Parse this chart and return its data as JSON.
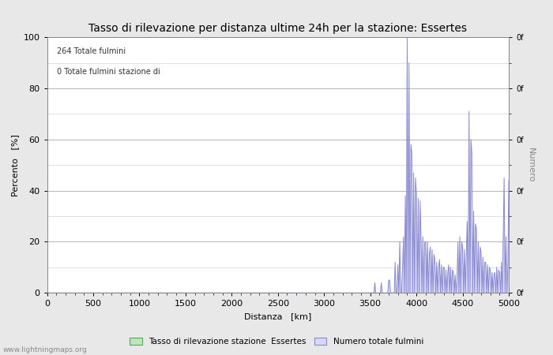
{
  "title": "Tasso di rilevazione per distanza ultime 24h per la stazione: Essertes",
  "xlabel": "Distanza   [km]",
  "ylabel_left": "Percento   [%]",
  "ylabel_right": "Numero",
  "annotation_line1": "264 Totale fulmini",
  "annotation_line2": "0 Totale fulmini stazione di",
  "xlim": [
    0,
    5000
  ],
  "ylim_left": [
    0,
    100
  ],
  "xticks": [
    0,
    500,
    1000,
    1500,
    2000,
    2500,
    3000,
    3500,
    4000,
    4500,
    5000
  ],
  "yticks_left": [
    0,
    20,
    40,
    60,
    80,
    100
  ],
  "bg_color": "#e8e8e8",
  "plot_bg_color": "#ffffff",
  "bar_fill_color": "#d8d8ff",
  "bar_line_color": "#8888cc",
  "green_bar_color": "#b8e8b8",
  "green_line_color": "#60a060",
  "watermark": "www.lightningmaps.org",
  "legend_label_green": "Tasso di rilevazione stazione  Essertes",
  "legend_label_blue": "Numero totale fulmini",
  "title_fontsize": 10,
  "axis_fontsize": 8,
  "tick_fontsize": 8,
  "signal_x": [
    3350,
    3360,
    3370,
    3380,
    3390,
    3400,
    3410,
    3420,
    3430,
    3440,
    3450,
    3460,
    3470,
    3480,
    3490,
    3500,
    3510,
    3520,
    3530,
    3540,
    3550,
    3560,
    3570,
    3580,
    3590,
    3600,
    3610,
    3620,
    3630,
    3640,
    3650,
    3660,
    3670,
    3680,
    3690,
    3700,
    3710,
    3720,
    3730,
    3740,
    3750,
    3760,
    3770,
    3780,
    3790,
    3800,
    3810,
    3820,
    3830,
    3840,
    3850,
    3860,
    3870,
    3880,
    3890,
    3900,
    3910,
    3920,
    3930,
    3940,
    3950,
    3960,
    3970,
    3980,
    3990,
    4000,
    4010,
    4020,
    4030,
    4040,
    4050,
    4060,
    4070,
    4080,
    4090,
    4100,
    4110,
    4120,
    4130,
    4140,
    4150,
    4160,
    4170,
    4180,
    4190,
    4200,
    4210,
    4220,
    4230,
    4240,
    4250,
    4260,
    4270,
    4280,
    4290,
    4300,
    4310,
    4320,
    4330,
    4340,
    4350,
    4360,
    4370,
    4380,
    4390,
    4400,
    4410,
    4420,
    4430,
    4440,
    4450,
    4460,
    4470,
    4480,
    4490,
    4500,
    4510,
    4520,
    4530,
    4540,
    4550,
    4560,
    4570,
    4580,
    4590,
    4600,
    4610,
    4620,
    4630,
    4640,
    4650,
    4660,
    4670,
    4680,
    4690,
    4700,
    4710,
    4720,
    4730,
    4740,
    4750,
    4760,
    4770,
    4780,
    4790,
    4800,
    4810,
    4820,
    4830,
    4840,
    4850,
    4860,
    4870,
    4880,
    4890,
    4900,
    4910,
    4920,
    4930,
    4940,
    4950,
    4960,
    4970,
    4980,
    4990,
    5000
  ],
  "signal_y": [
    0,
    0,
    0,
    0,
    0,
    0,
    0,
    0,
    0,
    0,
    0,
    0,
    0,
    0,
    0,
    0,
    0,
    0,
    0,
    0,
    4,
    0,
    0,
    0,
    0,
    0,
    0,
    4,
    0,
    0,
    0,
    0,
    0,
    0,
    0,
    5,
    5,
    0,
    0,
    0,
    0,
    0,
    12,
    0,
    0,
    11,
    0,
    20,
    0,
    0,
    10,
    22,
    0,
    38,
    0,
    100,
    0,
    90,
    0,
    58,
    55,
    0,
    47,
    0,
    45,
    39,
    0,
    37,
    0,
    36,
    22,
    0,
    22,
    0,
    20,
    20,
    0,
    20,
    0,
    15,
    18,
    0,
    17,
    0,
    15,
    13,
    0,
    12,
    0,
    10,
    13,
    0,
    11,
    0,
    10,
    10,
    0,
    9,
    0,
    8,
    11,
    0,
    10,
    0,
    9,
    8,
    0,
    7,
    0,
    6,
    20,
    0,
    22,
    0,
    20,
    18,
    0,
    17,
    0,
    15,
    28,
    0,
    71,
    0,
    60,
    55,
    0,
    32,
    0,
    27,
    25,
    0,
    20,
    0,
    18,
    16,
    0,
    14,
    0,
    12,
    12,
    0,
    11,
    0,
    10,
    9,
    0,
    8,
    0,
    7,
    8,
    0,
    10,
    0,
    9,
    8,
    0,
    12,
    0,
    22,
    45,
    0,
    22,
    0,
    10,
    44
  ]
}
